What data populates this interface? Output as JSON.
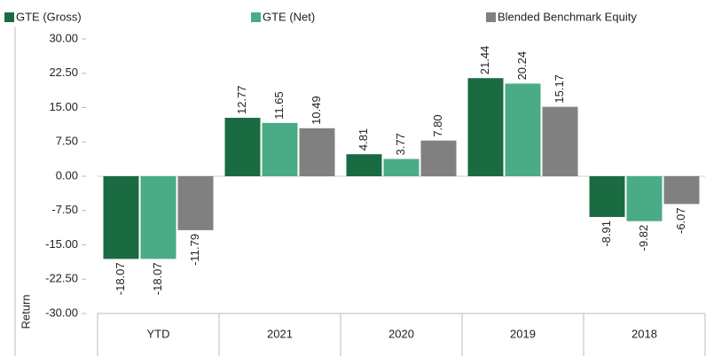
{
  "chart_data": {
    "type": "bar",
    "y_axis_label": "Return",
    "categories": [
      "YTD",
      "2021",
      "2020",
      "2019",
      "2018"
    ],
    "series": [
      {
        "name": "GTE (Gross)",
        "color": "#1b6b42",
        "values": [
          -18.07,
          12.77,
          4.81,
          21.44,
          -8.91
        ],
        "value_labels": [
          "-18.07",
          "12.77",
          "4.81",
          "21.44",
          "-8.91"
        ]
      },
      {
        "name": "GTE (Net)",
        "color": "#4aab87",
        "values": [
          -18.07,
          11.65,
          3.77,
          20.24,
          -9.82
        ],
        "value_labels": [
          "-18.07",
          "11.65",
          "3.77",
          "20.24",
          "-9.82"
        ]
      },
      {
        "name": "Blended Benchmark Equity",
        "color": "#808080",
        "values": [
          -11.79,
          10.49,
          7.8,
          15.17,
          -6.07
        ],
        "value_labels": [
          "-11.79",
          "10.49",
          "7.80",
          "15.17",
          "-6.07"
        ]
      }
    ],
    "ylim": [
      -30,
      30
    ],
    "yticks": [
      {
        "value": -30,
        "label": "-30.00"
      },
      {
        "value": -22.5,
        "label": "-22.50"
      },
      {
        "value": -15,
        "label": "-15.00"
      },
      {
        "value": -7.5,
        "label": "-7.50"
      },
      {
        "value": 0,
        "label": "0.00"
      },
      {
        "value": 7.5,
        "label": "7.50"
      },
      {
        "value": 15,
        "label": "15.00"
      },
      {
        "value": 22.5,
        "label": "22.50"
      },
      {
        "value": 30,
        "label": "30.00"
      }
    ],
    "legend": "top"
  }
}
